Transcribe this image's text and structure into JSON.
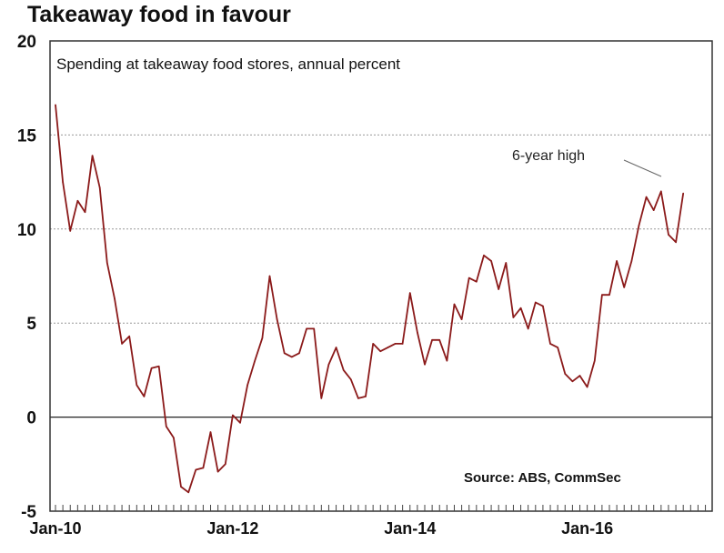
{
  "chart_data": {
    "type": "line",
    "title": "Takeaway food in favour",
    "subtitle": "Spending at takeaway food stores, annual percent",
    "source": "Source: ABS, CommSec",
    "annotation": "6-year high",
    "xlabel": "",
    "ylabel": "",
    "x_start": "Jan-10",
    "x_frequency": "monthly",
    "x_tick_labels": [
      "Jan-10",
      "Jan-12",
      "Jan-14",
      "Jan-16"
    ],
    "y_ticks": [
      -5,
      0,
      5,
      10,
      15,
      20
    ],
    "ylim": [
      -5,
      20
    ],
    "grid": "horizontal dotted",
    "line_color": "#8b1a1a",
    "series": [
      {
        "values": [
          16.6,
          12.5,
          9.9,
          11.5,
          10.9,
          13.9,
          12.2,
          8.2,
          6.3,
          3.9,
          4.3,
          1.7,
          1.1,
          2.6,
          2.7,
          -0.5,
          -1.1,
          -3.7,
          -4.0,
          -2.8,
          -2.7,
          -0.8,
          -2.9,
          -2.5,
          0.1,
          -0.3,
          1.7,
          3.0,
          4.2,
          7.5,
          5.2,
          3.4,
          3.2,
          3.4,
          4.7,
          4.7,
          1.0,
          2.8,
          3.7,
          2.5,
          2.0,
          1.0,
          1.1,
          3.9,
          3.5,
          3.7,
          3.9,
          3.9,
          6.6,
          4.5,
          2.8,
          4.1,
          4.1,
          3.0,
          6.0,
          5.2,
          7.4,
          7.2,
          8.6,
          8.3,
          6.8,
          8.2,
          5.3,
          5.8,
          4.7,
          6.1,
          5.9,
          3.9,
          3.7,
          2.3,
          1.9,
          2.2,
          1.6,
          3.0,
          6.5,
          6.5,
          8.3,
          6.9,
          8.3,
          10.2,
          11.7,
          11.0,
          12.0,
          9.7,
          9.3,
          11.9
        ]
      }
    ]
  }
}
